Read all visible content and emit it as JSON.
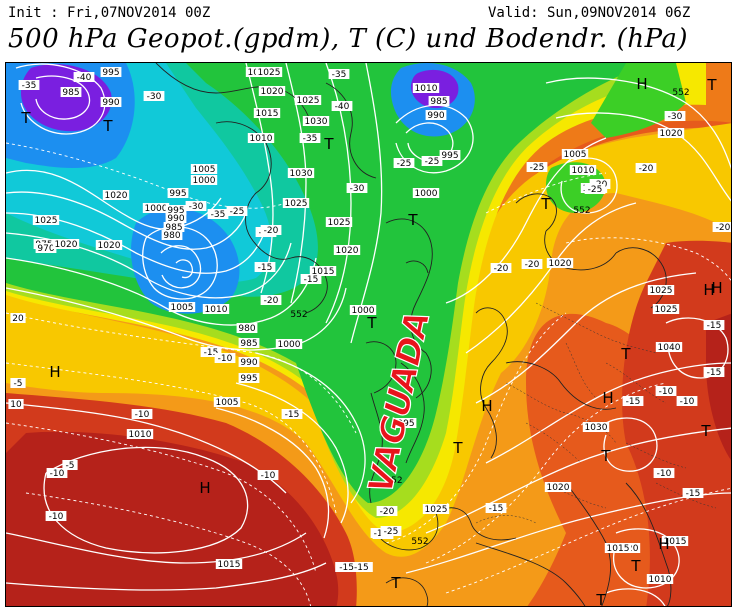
{
  "header": {
    "init": "Init : Fri,07NOV2014 00Z",
    "valid": "Valid: Sun,09NOV2014 06Z",
    "title": "500 hPa Geopot.(gpdm), T (C) und Bodendr. (hPa)"
  },
  "annotation": "VAGUADA",
  "pressure_labels": [
    {
      "t": "995"
    },
    {
      "t": "985"
    },
    {
      "t": "990"
    },
    {
      "t": "1025"
    },
    {
      "t": "1020"
    },
    {
      "t": "1015"
    },
    {
      "t": "1025"
    },
    {
      "t": "1030"
    },
    {
      "t": "1010"
    },
    {
      "t": "1030"
    },
    {
      "t": "1025"
    },
    {
      "t": "1005"
    },
    {
      "t": "1000"
    },
    {
      "t": "995"
    },
    {
      "t": "1000"
    },
    {
      "t": "995"
    },
    {
      "t": "990"
    },
    {
      "t": "985"
    },
    {
      "t": "980"
    },
    {
      "t": "975"
    },
    {
      "t": "970"
    },
    {
      "t": "1005"
    },
    {
      "t": "1010"
    },
    {
      "t": "980"
    },
    {
      "t": "985"
    },
    {
      "t": "990"
    },
    {
      "t": "995"
    },
    {
      "t": "1000"
    },
    {
      "t": "1005"
    },
    {
      "t": "1010"
    },
    {
      "t": "1015"
    },
    {
      "t": "1025"
    },
    {
      "t": "1025"
    },
    {
      "t": "1020"
    },
    {
      "t": "1015"
    },
    {
      "t": "1010"
    },
    {
      "t": "985"
    },
    {
      "t": "990"
    },
    {
      "t": "995"
    },
    {
      "t": "1000"
    },
    {
      "t": "1000"
    },
    {
      "t": "995"
    },
    {
      "t": "1005"
    },
    {
      "t": "1010"
    },
    {
      "t": "1015"
    },
    {
      "t": "1020"
    },
    {
      "t": "1025"
    },
    {
      "t": "1020"
    },
    {
      "t": "1025"
    },
    {
      "t": "1040"
    },
    {
      "t": "1030"
    },
    {
      "t": "1020"
    },
    {
      "t": "1025"
    },
    {
      "t": "1020"
    },
    {
      "t": "1015"
    },
    {
      "t": "1015"
    },
    {
      "t": "1010"
    },
    {
      "t": "1020"
    },
    {
      "t": "1020"
    },
    {
      "t": "1020"
    },
    {
      "t": "1025"
    }
  ],
  "temperature_labels": [
    {
      "t": "-35"
    },
    {
      "t": "-40"
    },
    {
      "t": "-30"
    },
    {
      "t": "-35"
    },
    {
      "t": "-40"
    },
    {
      "t": "-35"
    },
    {
      "t": "-30"
    },
    {
      "t": "-25"
    },
    {
      "t": "-25"
    },
    {
      "t": "-30"
    },
    {
      "t": "-35"
    },
    {
      "t": "-30"
    },
    {
      "t": "-25"
    },
    {
      "t": "-20"
    },
    {
      "t": "-15"
    },
    {
      "t": "-15"
    },
    {
      "t": "-20"
    },
    {
      "t": "-15"
    },
    {
      "t": "-10"
    },
    {
      "t": "-25"
    },
    {
      "t": "-20"
    },
    {
      "t": "-25"
    },
    {
      "t": "-20"
    },
    {
      "t": "-30"
    },
    {
      "t": "-20"
    },
    {
      "t": "-20"
    },
    {
      "t": "-20"
    },
    {
      "t": "-15"
    },
    {
      "t": "-15"
    },
    {
      "t": "-10"
    },
    {
      "t": "-15"
    },
    {
      "t": "-10"
    },
    {
      "t": "-10"
    },
    {
      "t": "-15"
    },
    {
      "t": "-10"
    },
    {
      "t": "-15"
    },
    {
      "t": "-10"
    },
    {
      "t": "-10"
    },
    {
      "t": "-5"
    },
    {
      "t": "-5"
    },
    {
      "t": "-15"
    },
    {
      "t": "-20"
    },
    {
      "t": "-15"
    },
    {
      "t": "-25"
    },
    {
      "t": "-20"
    },
    {
      "t": "-15-15"
    },
    {
      "t": "-10"
    },
    {
      "t": "20"
    },
    {
      "t": "10"
    }
  ],
  "geopotential_labels": [
    {
      "t": "552"
    },
    {
      "t": "552"
    },
    {
      "t": "552"
    },
    {
      "t": "552"
    },
    {
      "t": "552"
    }
  ],
  "pressure_centers": [
    {
      "t": "H"
    },
    {
      "t": "H"
    },
    {
      "t": "H"
    },
    {
      "t": "H"
    },
    {
      "t": "H"
    },
    {
      "t": "H"
    },
    {
      "t": "H"
    },
    {
      "t": "H"
    },
    {
      "t": "T"
    },
    {
      "t": "T"
    },
    {
      "t": "T"
    },
    {
      "t": "T"
    },
    {
      "t": "T"
    },
    {
      "t": "T"
    },
    {
      "t": "T"
    },
    {
      "t": "T"
    },
    {
      "t": "T"
    },
    {
      "t": "T"
    },
    {
      "t": "T"
    },
    {
      "t": "T"
    },
    {
      "t": "T"
    },
    {
      "t": "T"
    }
  ],
  "colors": {
    "violet": "#7a1fe0",
    "blue": "#1c8ff0",
    "cyan": "#11c9d8",
    "teal": "#10c8a0",
    "green": "#22c43c",
    "green2": "#3ccf26",
    "yellowgreen": "#a6dd1e",
    "yellow": "#f6e800",
    "yelloworange": "#f8c800",
    "orange": "#f49a18",
    "orange2": "#ee7a18",
    "redorange": "#e65a1c",
    "red": "#d23a1c",
    "darkred": "#b5221a",
    "annotation": "#e8141c"
  }
}
